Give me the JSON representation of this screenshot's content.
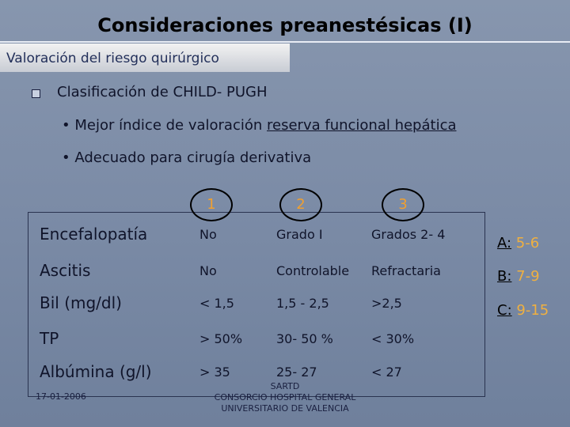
{
  "title": "Consideraciones preanestésicas (I)",
  "tab": "Valoración del riesgo quirúrgico",
  "bullet": "Clasificación de CHILD- PUGH",
  "sub_bullets": [
    {
      "text": "Mejor índice de valoración ",
      "underlined": "reserva funcional hepática"
    },
    {
      "text": "Adecuado para cirugía derivativa"
    }
  ],
  "table": {
    "header": [
      "1",
      "2",
      "3"
    ],
    "rows": [
      [
        "Encefalopatía",
        "No",
        "Grado I",
        "Grados 2- 4"
      ],
      [
        "Ascitis",
        "No",
        "Controlable",
        "Refractaria"
      ],
      [
        "Bil (mg/dl)",
        "< 1,5",
        "1,5 - 2,5",
        ">2,5"
      ],
      [
        "TP",
        "> 50%",
        "30- 50 %",
        "< 30%"
      ],
      [
        "Albúmina (g/l)",
        "> 35",
        "25- 27",
        "< 27"
      ]
    ]
  },
  "scores": [
    {
      "label": "A:",
      "range": "5-6"
    },
    {
      "label": "B:",
      "range": "7-9"
    },
    {
      "label": "C:",
      "range": "9-15"
    }
  ],
  "footer": {
    "date": "17-01-2006",
    "org": [
      "SARTD",
      "CONSORCIO HOSPITAL GENERAL",
      "UNIVERSITARIO DE VALENCIA"
    ]
  }
}
